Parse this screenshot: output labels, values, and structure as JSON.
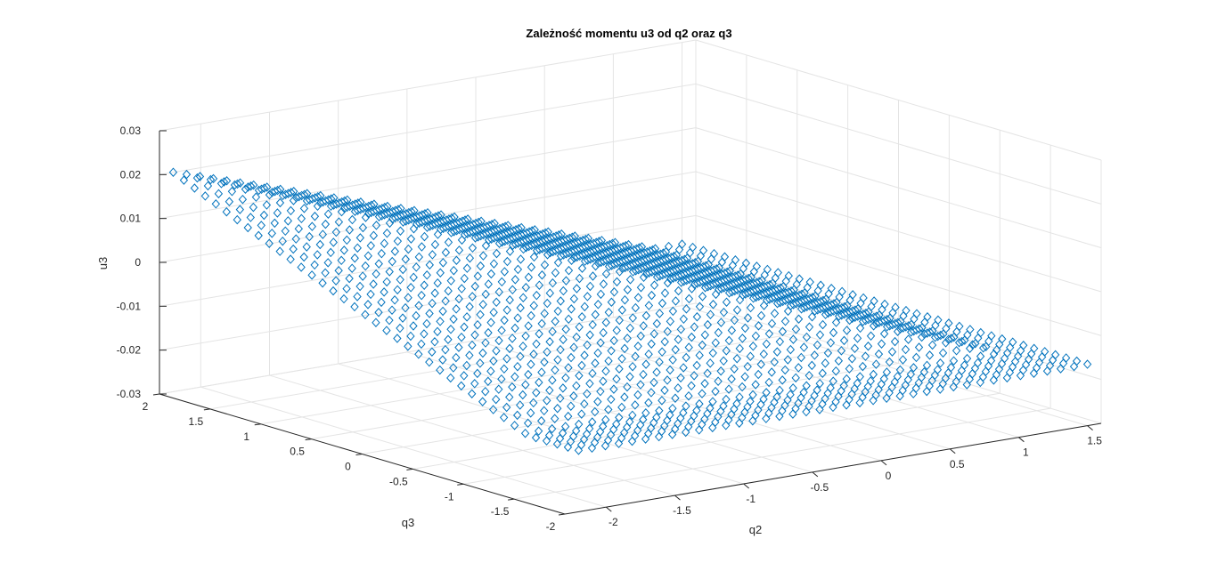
{
  "chart_data": {
    "type": "scatter3d",
    "title": "Zależność momentu u3 od q2 oraz q3",
    "xlabel": "q2",
    "ylabel": "q3",
    "zlabel": "u3",
    "xlim": [
      -2.3,
      1.6
    ],
    "ylim": [
      -2,
      2
    ],
    "zlim": [
      -0.03,
      0.03
    ],
    "x_ticks": [
      "-2",
      "-1.5",
      "-1",
      "-0.5",
      "0",
      "0.5",
      "1",
      "1.5"
    ],
    "y_ticks": [
      "-2",
      "-1.5",
      "-1",
      "-0.5",
      "0",
      "0.5",
      "1",
      "1.5",
      "2"
    ],
    "z_ticks": [
      "0.03",
      "0.02",
      "0.01",
      "0",
      "-0.01",
      "-0.02",
      "-0.03"
    ],
    "grid": true,
    "marker": "diamond",
    "marker_color": "#0072bd",
    "series": [
      {
        "description_of_values": "grid of points; u3 ≈ 0.02 - 0.036·min(1, max(q2 + 2.2, 2 - q3) / 3.5)",
        "q2_range": [
          -2.2,
          1.5
        ],
        "q3_range": [
          -2,
          2
        ],
        "u3_max": 0.02,
        "u3_min": -0.016
      }
    ]
  }
}
